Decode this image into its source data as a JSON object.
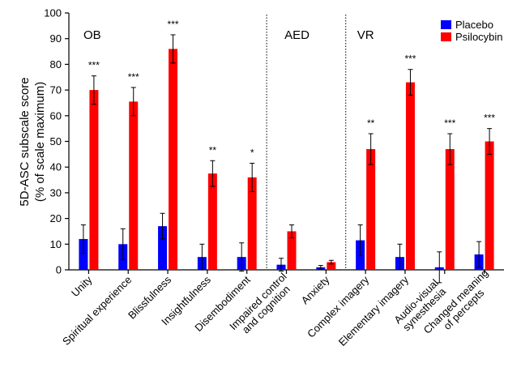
{
  "chart_data": {
    "type": "bar",
    "ylabel_line1": "5D-ASC subscale score",
    "ylabel_line2": "(% of scale maximum)",
    "ylim": [
      0,
      100
    ],
    "yticks": [
      0,
      10,
      20,
      30,
      40,
      50,
      60,
      70,
      80,
      90,
      100
    ],
    "legend_position": "top-right",
    "categories": [
      [
        "Unity"
      ],
      [
        "Spiritual experience"
      ],
      [
        "Blissfulness"
      ],
      [
        "Insightfulness"
      ],
      [
        "Disembodiment"
      ],
      [
        "Impaired control",
        "and cognition"
      ],
      [
        "Anxiety"
      ],
      [
        "Complex imagery"
      ],
      [
        "Elementary imagery"
      ],
      [
        "Audio-visual",
        "synesthesia"
      ],
      [
        "Changed meaning",
        "of percepts"
      ]
    ],
    "series": [
      {
        "name": "Placebo",
        "color": "#0000ff",
        "values": [
          12,
          10,
          17,
          5,
          5,
          2,
          1,
          11.5,
          5,
          1,
          6
        ],
        "errors": [
          5.5,
          6,
          5,
          5,
          5.5,
          2.5,
          0.7,
          6,
          5,
          6,
          5
        ]
      },
      {
        "name": "Psilocybin",
        "color": "#ff0000",
        "values": [
          70,
          65.5,
          86,
          37.5,
          36,
          15,
          3,
          47,
          73,
          47,
          50
        ],
        "errors": [
          5.5,
          5.5,
          5.5,
          5,
          5.5,
          2.5,
          0.7,
          6,
          5,
          6,
          5
        ]
      }
    ],
    "significance": [
      "***",
      "***",
      "***",
      "**",
      "*",
      "",
      "",
      "**",
      "***",
      "***",
      "***"
    ],
    "groups": [
      {
        "label": "OB",
        "start": 0,
        "end": 4
      },
      {
        "label": "AED",
        "start": 5,
        "end": 6
      },
      {
        "label": "VR",
        "start": 7,
        "end": 10
      }
    ]
  }
}
